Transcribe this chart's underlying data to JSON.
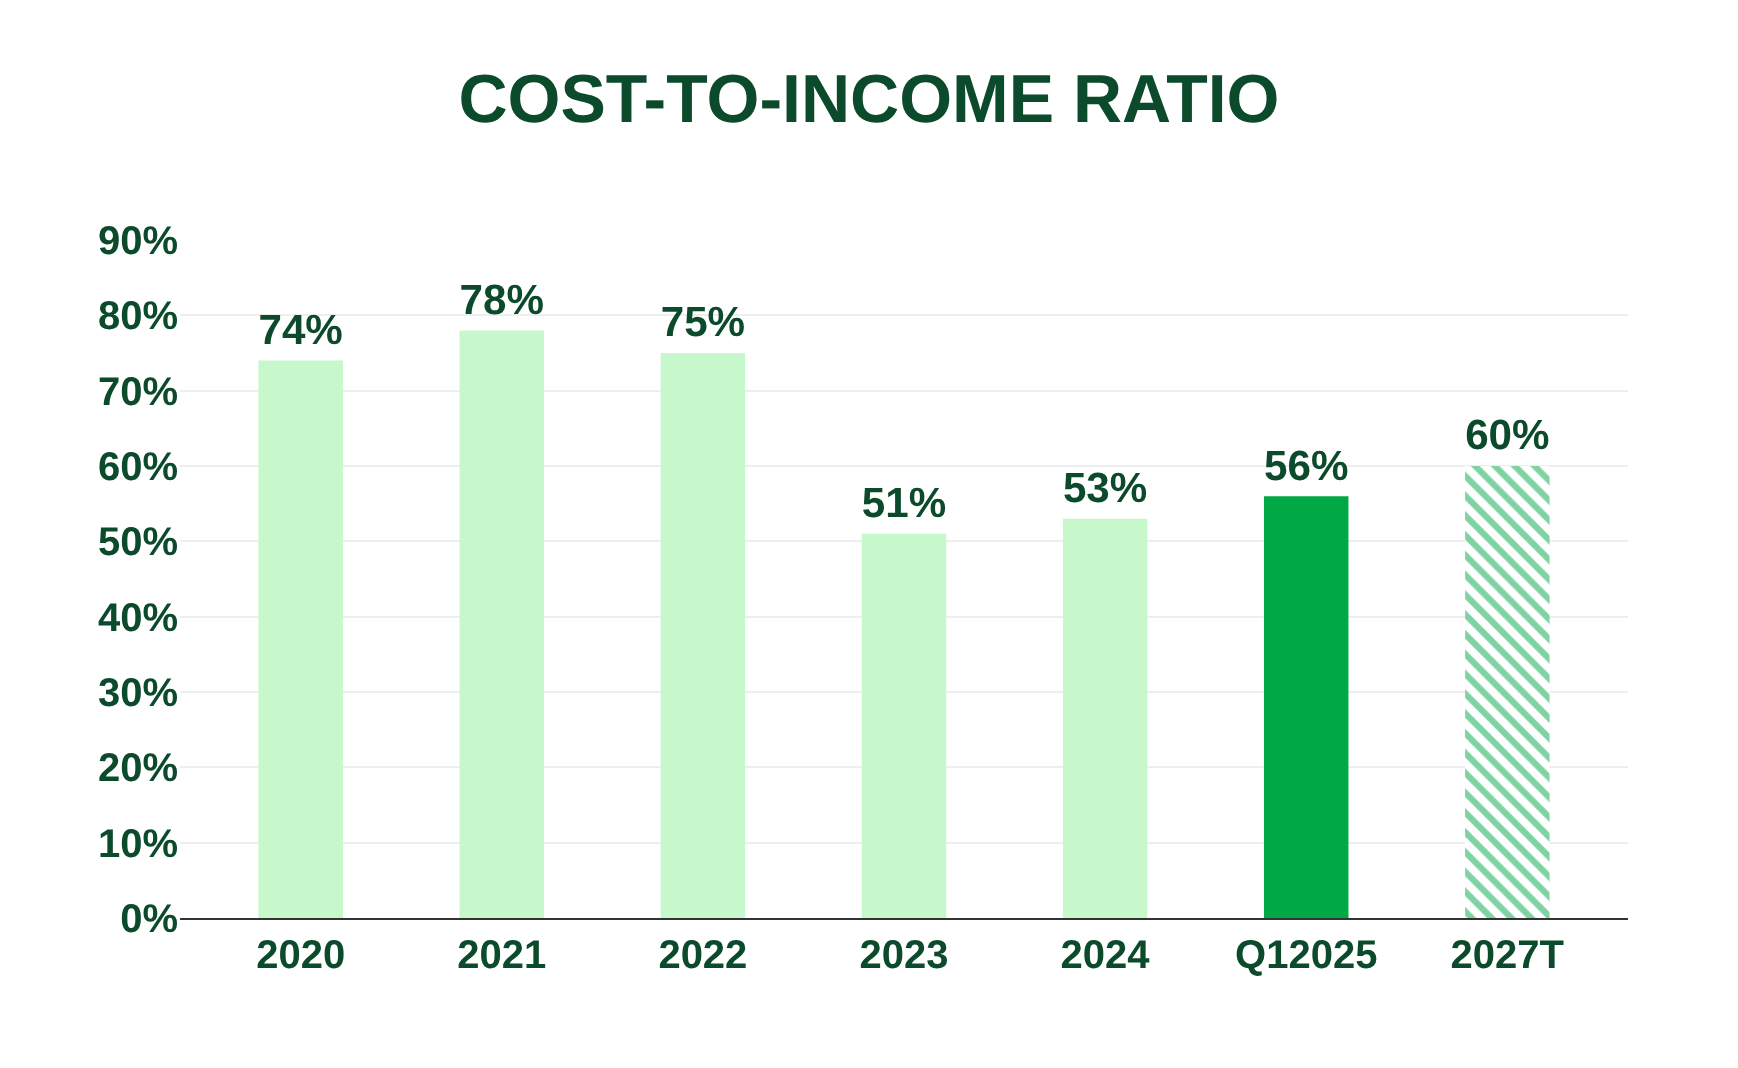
{
  "chart_data": {
    "type": "bar",
    "title": "COST-TO-INCOME RATIO",
    "categories": [
      "2020",
      "2021",
      "2022",
      "2023",
      "2024",
      "Q12025",
      "2027T"
    ],
    "values": [
      74,
      78,
      75,
      51,
      53,
      56,
      60
    ],
    "colors": [
      "#c6f8cc",
      "#c6f8cc",
      "#c6f8cc",
      "#c6f8cc",
      "#c6f8cc",
      "#00a846",
      "#00a846"
    ],
    "value_labels": [
      "74%",
      "78%",
      "75%",
      "51%",
      "53%",
      "56%",
      "60%"
    ],
    "ylim": [
      0,
      90
    ],
    "yticks": [
      {
        "value": 0,
        "label": "0%"
      },
      {
        "value": 10,
        "label": "10%"
      },
      {
        "value": 20,
        "label": "20%"
      },
      {
        "value": 30,
        "label": "30%"
      },
      {
        "value": 40,
        "label": "40%"
      },
      {
        "value": 50,
        "label": "50%"
      },
      {
        "value": 60,
        "label": "60%"
      },
      {
        "value": 70,
        "label": "70%"
      },
      {
        "value": 80,
        "label": "80%"
      },
      {
        "value": 90,
        "label": "90%"
      }
    ],
    "grid": "y"
  }
}
